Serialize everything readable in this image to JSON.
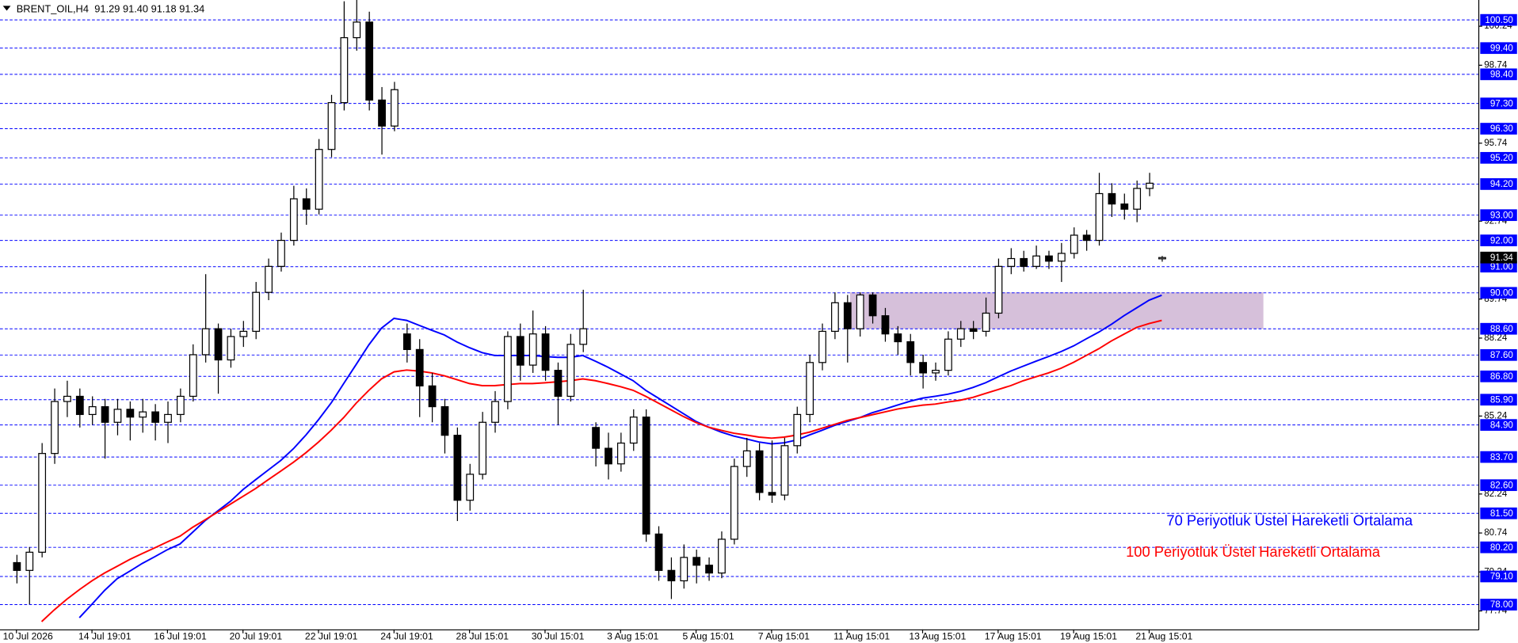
{
  "chart_data": {
    "type": "candlestick",
    "title": "BRENT_OIL,H4",
    "subtitle": "91.29 91.40 91.18 91.34",
    "categories": [
      "10 Jul 2026",
      null,
      null,
      null,
      null,
      null,
      "14 Jul 19:01",
      null,
      null,
      null,
      null,
      null,
      "16 Jul 19:01",
      null,
      null,
      null,
      null,
      null,
      "20 Jul 19:01",
      null,
      null,
      null,
      null,
      null,
      "22 Jul 19:01",
      null,
      null,
      null,
      null,
      null,
      "24 Jul 19:01",
      null,
      null,
      null,
      null,
      null,
      "28 Jul 15:01",
      null,
      null,
      null,
      null,
      null,
      "30 Jul 15:01",
      null,
      null,
      null,
      null,
      null,
      "3 Aug 15:01",
      null,
      null,
      null,
      null,
      null,
      "5 Aug 15:01",
      null,
      null,
      null,
      null,
      null,
      "7 Aug 15:01",
      null,
      null,
      null,
      null,
      null,
      "11 Aug 15:01",
      null,
      null,
      null,
      null,
      null,
      "13 Aug 15:01",
      null,
      null,
      null,
      null,
      null,
      "17 Aug 15:01",
      null,
      null,
      null,
      null,
      null,
      "19 Aug 15:01",
      null,
      null,
      null,
      null,
      null,
      "21 Aug 15:01",
      null
    ],
    "open": [
      79.6,
      79.3,
      80.0,
      83.8,
      85.8,
      86.0,
      85.3,
      85.6,
      85.0,
      85.5,
      85.2,
      85.4,
      85.0,
      85.3,
      86.0,
      87.6,
      88.6,
      87.4,
      88.3,
      88.5,
      90.0,
      91.0,
      92.0,
      93.6,
      93.2,
      95.5,
      97.3,
      99.8,
      100.4,
      97.4,
      96.4,
      88.4,
      87.8,
      86.4,
      85.6,
      84.5,
      82.0,
      83.0,
      85.0,
      85.8,
      88.3,
      87.2,
      88.4,
      87.0,
      86.0,
      88.0,
      84.8,
      84.0,
      83.4,
      84.2,
      85.2,
      80.7,
      79.3,
      78.9,
      79.8,
      79.5,
      79.2,
      80.5,
      83.3,
      83.9,
      82.3,
      82.2,
      84.1,
      85.3,
      87.3,
      88.5,
      89.6,
      88.6,
      89.9,
      89.1,
      88.4,
      88.1,
      87.3,
      86.9,
      87.0,
      88.2,
      88.6,
      88.5,
      89.2,
      91.0,
      91.3,
      91.0,
      91.4,
      91.2,
      91.5,
      92.2,
      92.0,
      93.8,
      93.4,
      93.2,
      94.0,
      91.29
    ],
    "high": [
      79.9,
      80.2,
      84.2,
      86.3,
      86.6,
      86.3,
      86.0,
      85.9,
      85.9,
      85.8,
      85.9,
      85.7,
      85.8,
      86.3,
      88.0,
      90.7,
      88.8,
      88.6,
      88.9,
      90.4,
      91.3,
      92.3,
      94.1,
      94.0,
      95.9,
      97.6,
      101.2,
      101.3,
      100.8,
      97.9,
      98.1,
      88.8,
      88.2,
      86.9,
      85.9,
      84.8,
      83.4,
      85.4,
      86.2,
      88.5,
      88.8,
      89.3,
      88.7,
      87.3,
      88.4,
      90.1,
      85.0,
      84.6,
      84.6,
      85.5,
      85.5,
      81.0,
      79.8,
      80.3,
      80.1,
      79.8,
      80.8,
      83.6,
      84.4,
      84.2,
      84.3,
      84.4,
      85.6,
      87.6,
      88.8,
      90.0,
      89.9,
      90.0,
      90.0,
      89.4,
      88.7,
      88.4,
      87.6,
      87.3,
      88.5,
      88.9,
      88.9,
      89.8,
      91.3,
      91.7,
      91.6,
      91.8,
      91.6,
      91.9,
      92.5,
      92.4,
      94.6,
      94.2,
      93.8,
      94.3,
      94.6,
      91.4
    ],
    "low": [
      78.8,
      78.0,
      79.8,
      83.4,
      85.2,
      84.8,
      84.9,
      83.6,
      84.5,
      84.3,
      84.6,
      84.3,
      84.2,
      85.0,
      85.8,
      87.3,
      86.1,
      87.1,
      87.9,
      88.2,
      89.7,
      90.8,
      91.8,
      92.6,
      93.0,
      95.2,
      97.0,
      99.3,
      97.0,
      95.3,
      96.2,
      87.3,
      85.2,
      85.0,
      83.8,
      81.2,
      81.6,
      82.8,
      84.6,
      85.5,
      86.6,
      86.9,
      86.6,
      84.9,
      85.8,
      87.7,
      83.3,
      82.8,
      83.1,
      83.9,
      80.4,
      78.9,
      78.2,
      78.6,
      78.8,
      78.9,
      79.0,
      80.3,
      82.9,
      82.0,
      81.9,
      82.0,
      83.8,
      85.0,
      87.0,
      88.2,
      87.3,
      88.3,
      88.8,
      88.1,
      87.6,
      86.8,
      86.3,
      86.6,
      86.8,
      87.9,
      88.2,
      88.3,
      89.0,
      90.7,
      90.8,
      90.9,
      90.9,
      90.4,
      91.3,
      91.6,
      91.8,
      92.9,
      92.8,
      92.7,
      93.7,
      91.18
    ],
    "close": [
      79.3,
      80.0,
      83.8,
      85.8,
      86.0,
      85.3,
      85.6,
      85.0,
      85.5,
      85.2,
      85.4,
      85.0,
      85.3,
      86.0,
      87.6,
      88.6,
      87.4,
      88.3,
      88.5,
      90.0,
      91.0,
      92.0,
      93.6,
      93.2,
      95.5,
      97.3,
      99.8,
      100.4,
      97.4,
      96.4,
      97.8,
      87.8,
      86.4,
      85.6,
      84.5,
      82.0,
      83.0,
      85.0,
      85.8,
      88.3,
      87.2,
      88.4,
      87.0,
      86.0,
      88.0,
      88.6,
      84.0,
      83.4,
      84.2,
      85.2,
      80.7,
      79.3,
      78.9,
      79.8,
      79.5,
      79.2,
      80.5,
      83.3,
      83.9,
      82.3,
      82.2,
      84.1,
      85.3,
      87.3,
      88.5,
      89.6,
      88.6,
      89.9,
      89.1,
      88.4,
      88.1,
      87.3,
      86.9,
      87.0,
      88.2,
      88.6,
      88.5,
      89.2,
      91.0,
      91.3,
      91.0,
      91.4,
      91.2,
      91.5,
      92.2,
      92.0,
      93.8,
      93.4,
      93.2,
      94.0,
      94.2,
      91.34
    ],
    "series": [
      {
        "name": "70 Periyotluk Üstel Hareketli Ortalama",
        "color": "#0000ff",
        "values": [
          null,
          null,
          null,
          null,
          null,
          77.48,
          78.0,
          78.53,
          78.98,
          79.27,
          79.57,
          79.83,
          80.1,
          80.32,
          80.77,
          81.22,
          81.59,
          81.96,
          82.41,
          82.79,
          83.16,
          83.53,
          83.98,
          84.51,
          85.1,
          85.74,
          86.49,
          87.23,
          87.98,
          88.62,
          89.0,
          88.92,
          88.73,
          88.54,
          88.36,
          88.09,
          87.87,
          87.68,
          87.57,
          87.57,
          87.57,
          87.57,
          87.53,
          87.5,
          87.5,
          87.57,
          87.35,
          87.12,
          86.86,
          86.6,
          86.23,
          85.93,
          85.63,
          85.33,
          85.03,
          84.81,
          84.62,
          84.47,
          84.36,
          84.24,
          84.17,
          84.21,
          84.32,
          84.51,
          84.69,
          84.88,
          85.03,
          85.18,
          85.37,
          85.51,
          85.66,
          85.81,
          85.93,
          86.0,
          86.08,
          86.19,
          86.34,
          86.52,
          86.75,
          86.97,
          87.16,
          87.35,
          87.53,
          87.72,
          87.94,
          88.21,
          88.47,
          88.77,
          89.1,
          89.4,
          89.7,
          89.89
        ]
      },
      {
        "name": "100 Periyotluk Üstel Hareketli Ortalama",
        "color": "#ff0000",
        "values": [
          null,
          null,
          77.33,
          77.78,
          78.19,
          78.56,
          78.9,
          79.2,
          79.46,
          79.72,
          79.95,
          80.17,
          80.4,
          80.62,
          80.96,
          81.25,
          81.55,
          81.85,
          82.15,
          82.45,
          82.79,
          83.12,
          83.46,
          83.83,
          84.24,
          84.69,
          85.18,
          85.74,
          86.23,
          86.67,
          86.94,
          87.01,
          86.97,
          86.9,
          86.79,
          86.64,
          86.49,
          86.41,
          86.41,
          86.45,
          86.49,
          86.49,
          86.52,
          86.56,
          86.6,
          86.67,
          86.6,
          86.49,
          86.37,
          86.23,
          86.0,
          85.74,
          85.48,
          85.22,
          84.99,
          84.81,
          84.69,
          84.58,
          84.51,
          84.43,
          84.39,
          84.43,
          84.51,
          84.62,
          84.77,
          84.92,
          85.07,
          85.18,
          85.29,
          85.4,
          85.51,
          85.59,
          85.66,
          85.7,
          85.78,
          85.85,
          85.96,
          86.11,
          86.26,
          86.41,
          86.6,
          86.75,
          86.9,
          87.08,
          87.31,
          87.57,
          87.83,
          88.13,
          88.39,
          88.65,
          88.8,
          88.92
        ]
      }
    ],
    "zone": {
      "top": 90.0,
      "bottom": 88.6,
      "color": "#d6c0da"
    },
    "levels": [
      {
        "value": 100.5,
        "label": "100.50"
      },
      {
        "value": 99.4,
        "label": "99.40"
      },
      {
        "value": 98.4,
        "label": "98.40"
      },
      {
        "value": 97.3,
        "label": "97.30"
      },
      {
        "value": 96.3,
        "label": "96.30"
      },
      {
        "value": 95.2,
        "label": "95.20"
      },
      {
        "value": 94.2,
        "label": "94.20"
      },
      {
        "value": 93.0,
        "label": "93.00"
      },
      {
        "value": 92.0,
        "label": "92.00"
      },
      {
        "value": 91.0,
        "label": "91.00"
      },
      {
        "value": 90.0,
        "label": "90.00"
      },
      {
        "value": 88.6,
        "label": "88.60"
      },
      {
        "value": 87.6,
        "label": "87.60"
      },
      {
        "value": 86.8,
        "label": "86.80"
      },
      {
        "value": 85.9,
        "label": "85.90"
      },
      {
        "value": 84.9,
        "label": "84.90"
      },
      {
        "value": 83.7,
        "label": "83.70"
      },
      {
        "value": 82.6,
        "label": "82.60"
      },
      {
        "value": 81.5,
        "label": "81.50"
      },
      {
        "value": 80.2,
        "label": "80.20"
      },
      {
        "value": 79.1,
        "label": "79.10"
      },
      {
        "value": 78.0,
        "label": "78.00"
      }
    ],
    "level_color": "#0000ff",
    "yticks": [
      100.24,
      98.74,
      95.74,
      92.74,
      89.74,
      88.24,
      85.24,
      82.24,
      80.74,
      79.24,
      77.74
    ],
    "ylim": [
      77.03,
      101.25
    ],
    "bull_color": "#ffffff",
    "bear_color": "#000000"
  }
}
